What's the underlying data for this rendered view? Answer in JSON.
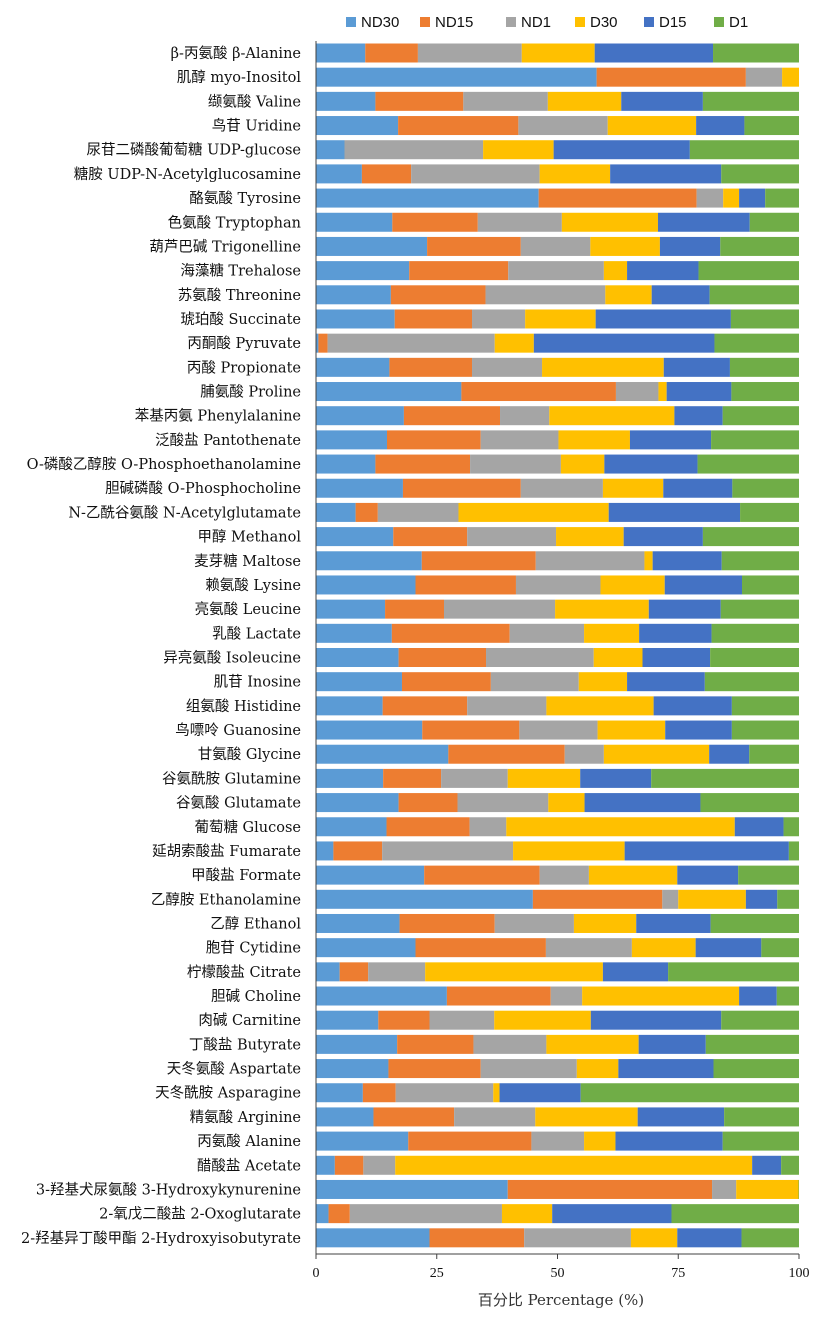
{
  "chart_data": {
    "type": "bar",
    "orientation": "horizontal",
    "stacked": true,
    "xlabel": "百分比 Percentage (%)",
    "ylabel": "",
    "title": "",
    "xlim": [
      0,
      100
    ],
    "xticks": [
      0,
      25,
      50,
      75,
      100
    ],
    "grid": false,
    "legend_position": "top",
    "categories": [
      "β-丙氨酸 β-Alanine",
      "肌醇 myo-Inositol",
      "缬氨酸 Valine",
      "鸟苷 Uridine",
      "尿苷二磷酸葡萄糖 UDP-glucose",
      "糖胺 UDP-N-Acetylglucosamine",
      "酪氨酸 Tyrosine",
      "色氨酸 Tryptophan",
      "葫芦巴碱 Trigonelline",
      "海藻糖 Trehalose",
      "苏氨酸 Threonine",
      "琥珀酸 Succinate",
      "丙酮酸 Pyruvate",
      "丙酸 Propionate",
      "脯氨酸 Proline",
      "苯基丙氨 Phenylalanine",
      "泛酸盐 Pantothenate",
      "O-磷酸乙醇胺 O-Phosphoethanolamine",
      "胆碱磷酸 O-Phosphocholine",
      "N-乙酰谷氨酸 N-Acetylglutamate",
      "甲醇 Methanol",
      "麦芽糖 Maltose",
      "赖氨酸 Lysine",
      "亮氨酸 Leucine",
      "乳酸 Lactate",
      "异亮氨酸 Isoleucine",
      "肌苷 Inosine",
      "组氨酸 Histidine",
      "鸟嘌呤 Guanosine",
      "甘氨酸 Glycine",
      "谷氨酰胺 Glutamine",
      "谷氨酸 Glutamate",
      "葡萄糖 Glucose",
      "延胡索酸盐 Fumarate",
      "甲酸盐 Formate",
      "乙醇胺 Ethanolamine",
      "乙醇 Ethanol",
      "胞苷 Cytidine",
      "柠檬酸盐 Citrate",
      "胆碱 Choline",
      "肉碱 Carnitine",
      "丁酸盐 Butyrate",
      "天冬氨酸 Aspartate",
      "天冬酰胺 Asparagine",
      "精氨酸 Arginine",
      "丙氨酸 Alanine",
      "醋酸盐 Acetate",
      "3-羟基犬尿氨酸 3-Hydroxykynurenine",
      "2-氧戊二酸盐 2-Oxoglutarate",
      "2-羟基异丁酸甲酯 2-Hydroxyisobutyrate"
    ],
    "series": [
      {
        "name": "ND30",
        "color": "#5B9BD5",
        "values": [
          10.2,
          58.1,
          12.3,
          17.0,
          5.9,
          9.5,
          46.1,
          15.8,
          23.0,
          19.3,
          15.5,
          16.3,
          0.5,
          15.2,
          30.1,
          18.2,
          14.7,
          12.3,
          18.0,
          8.2,
          16.0,
          21.9,
          20.6,
          14.3,
          15.7,
          17.1,
          17.8,
          13.8,
          22.0,
          27.4,
          13.9,
          17.1,
          14.6,
          3.6,
          22.4,
          44.9,
          17.3,
          20.6,
          4.9,
          27.1,
          12.9,
          16.8,
          15.0,
          9.7,
          11.9,
          19.1,
          3.9,
          39.7,
          2.6,
          23.5
        ]
      },
      {
        "name": "ND15",
        "color": "#ED7D31",
        "values": [
          10.9,
          30.9,
          18.2,
          24.9,
          0.0,
          10.2,
          32.7,
          17.7,
          19.4,
          20.5,
          19.6,
          16.0,
          1.9,
          17.1,
          32.0,
          19.9,
          19.4,
          19.6,
          24.4,
          4.6,
          15.3,
          23.6,
          20.8,
          12.2,
          24.4,
          18.1,
          18.4,
          17.5,
          20.1,
          24.1,
          12.0,
          12.2,
          17.2,
          10.1,
          23.9,
          26.8,
          19.7,
          27.0,
          5.9,
          21.5,
          10.6,
          15.8,
          19.1,
          6.8,
          16.7,
          25.5,
          5.9,
          42.3,
          4.4,
          19.6
        ]
      },
      {
        "name": "ND1",
        "color": "#A5A5A5",
        "values": [
          21.5,
          7.5,
          17.5,
          18.5,
          28.7,
          26.6,
          5.5,
          17.4,
          14.4,
          19.8,
          24.8,
          11.0,
          34.6,
          14.5,
          8.8,
          10.2,
          16.1,
          18.8,
          17.0,
          16.7,
          18.4,
          22.5,
          17.5,
          23.0,
          15.4,
          22.3,
          18.2,
          16.4,
          16.2,
          8.1,
          13.8,
          18.8,
          7.6,
          27.1,
          10.2,
          3.3,
          16.4,
          17.8,
          11.8,
          6.5,
          13.4,
          15.1,
          19.9,
          20.2,
          16.8,
          10.9,
          6.6,
          5.0,
          31.5,
          22.1
        ]
      },
      {
        "name": "D30",
        "color": "#FFC000",
        "values": [
          15.1,
          3.5,
          15.2,
          18.3,
          14.6,
          14.6,
          3.3,
          19.9,
          14.4,
          4.8,
          9.6,
          14.6,
          8.1,
          25.2,
          1.7,
          25.9,
          14.8,
          9.0,
          12.5,
          31.1,
          14.0,
          1.7,
          13.3,
          19.4,
          11.4,
          10.1,
          10.0,
          22.2,
          14.0,
          21.8,
          15.0,
          7.5,
          47.3,
          23.1,
          18.3,
          14.0,
          12.9,
          13.2,
          36.8,
          32.5,
          20.0,
          19.1,
          8.6,
          1.3,
          21.2,
          6.5,
          73.9,
          12.9,
          10.4,
          9.6
        ]
      },
      {
        "name": "D15",
        "color": "#4472C4",
        "values": [
          24.5,
          0.0,
          16.9,
          10.0,
          28.2,
          23.0,
          5.4,
          19.0,
          12.5,
          14.8,
          12.0,
          28.0,
          37.4,
          13.7,
          13.4,
          10.0,
          16.8,
          19.3,
          14.3,
          27.2,
          16.4,
          14.3,
          16.0,
          14.9,
          15.0,
          14.0,
          16.1,
          16.2,
          13.8,
          8.3,
          14.7,
          24.0,
          10.1,
          34.0,
          12.6,
          6.5,
          15.4,
          13.6,
          13.5,
          7.8,
          27.0,
          13.9,
          19.7,
          16.8,
          17.9,
          22.2,
          6.0,
          0.0,
          24.7,
          13.3
        ]
      },
      {
        "name": "D1",
        "color": "#70AD47",
        "values": [
          17.8,
          0.0,
          19.9,
          11.3,
          22.6,
          16.1,
          7.0,
          10.2,
          16.3,
          20.8,
          18.5,
          14.1,
          17.5,
          14.3,
          14.0,
          15.8,
          18.2,
          21.0,
          13.8,
          12.2,
          19.9,
          16.0,
          11.8,
          16.2,
          18.1,
          18.4,
          19.5,
          13.9,
          13.9,
          10.3,
          30.6,
          20.4,
          3.2,
          2.1,
          12.6,
          4.5,
          18.3,
          7.8,
          27.1,
          4.6,
          16.1,
          19.3,
          17.7,
          45.2,
          15.5,
          15.8,
          3.7,
          0.1,
          26.4,
          11.9
        ]
      }
    ]
  }
}
